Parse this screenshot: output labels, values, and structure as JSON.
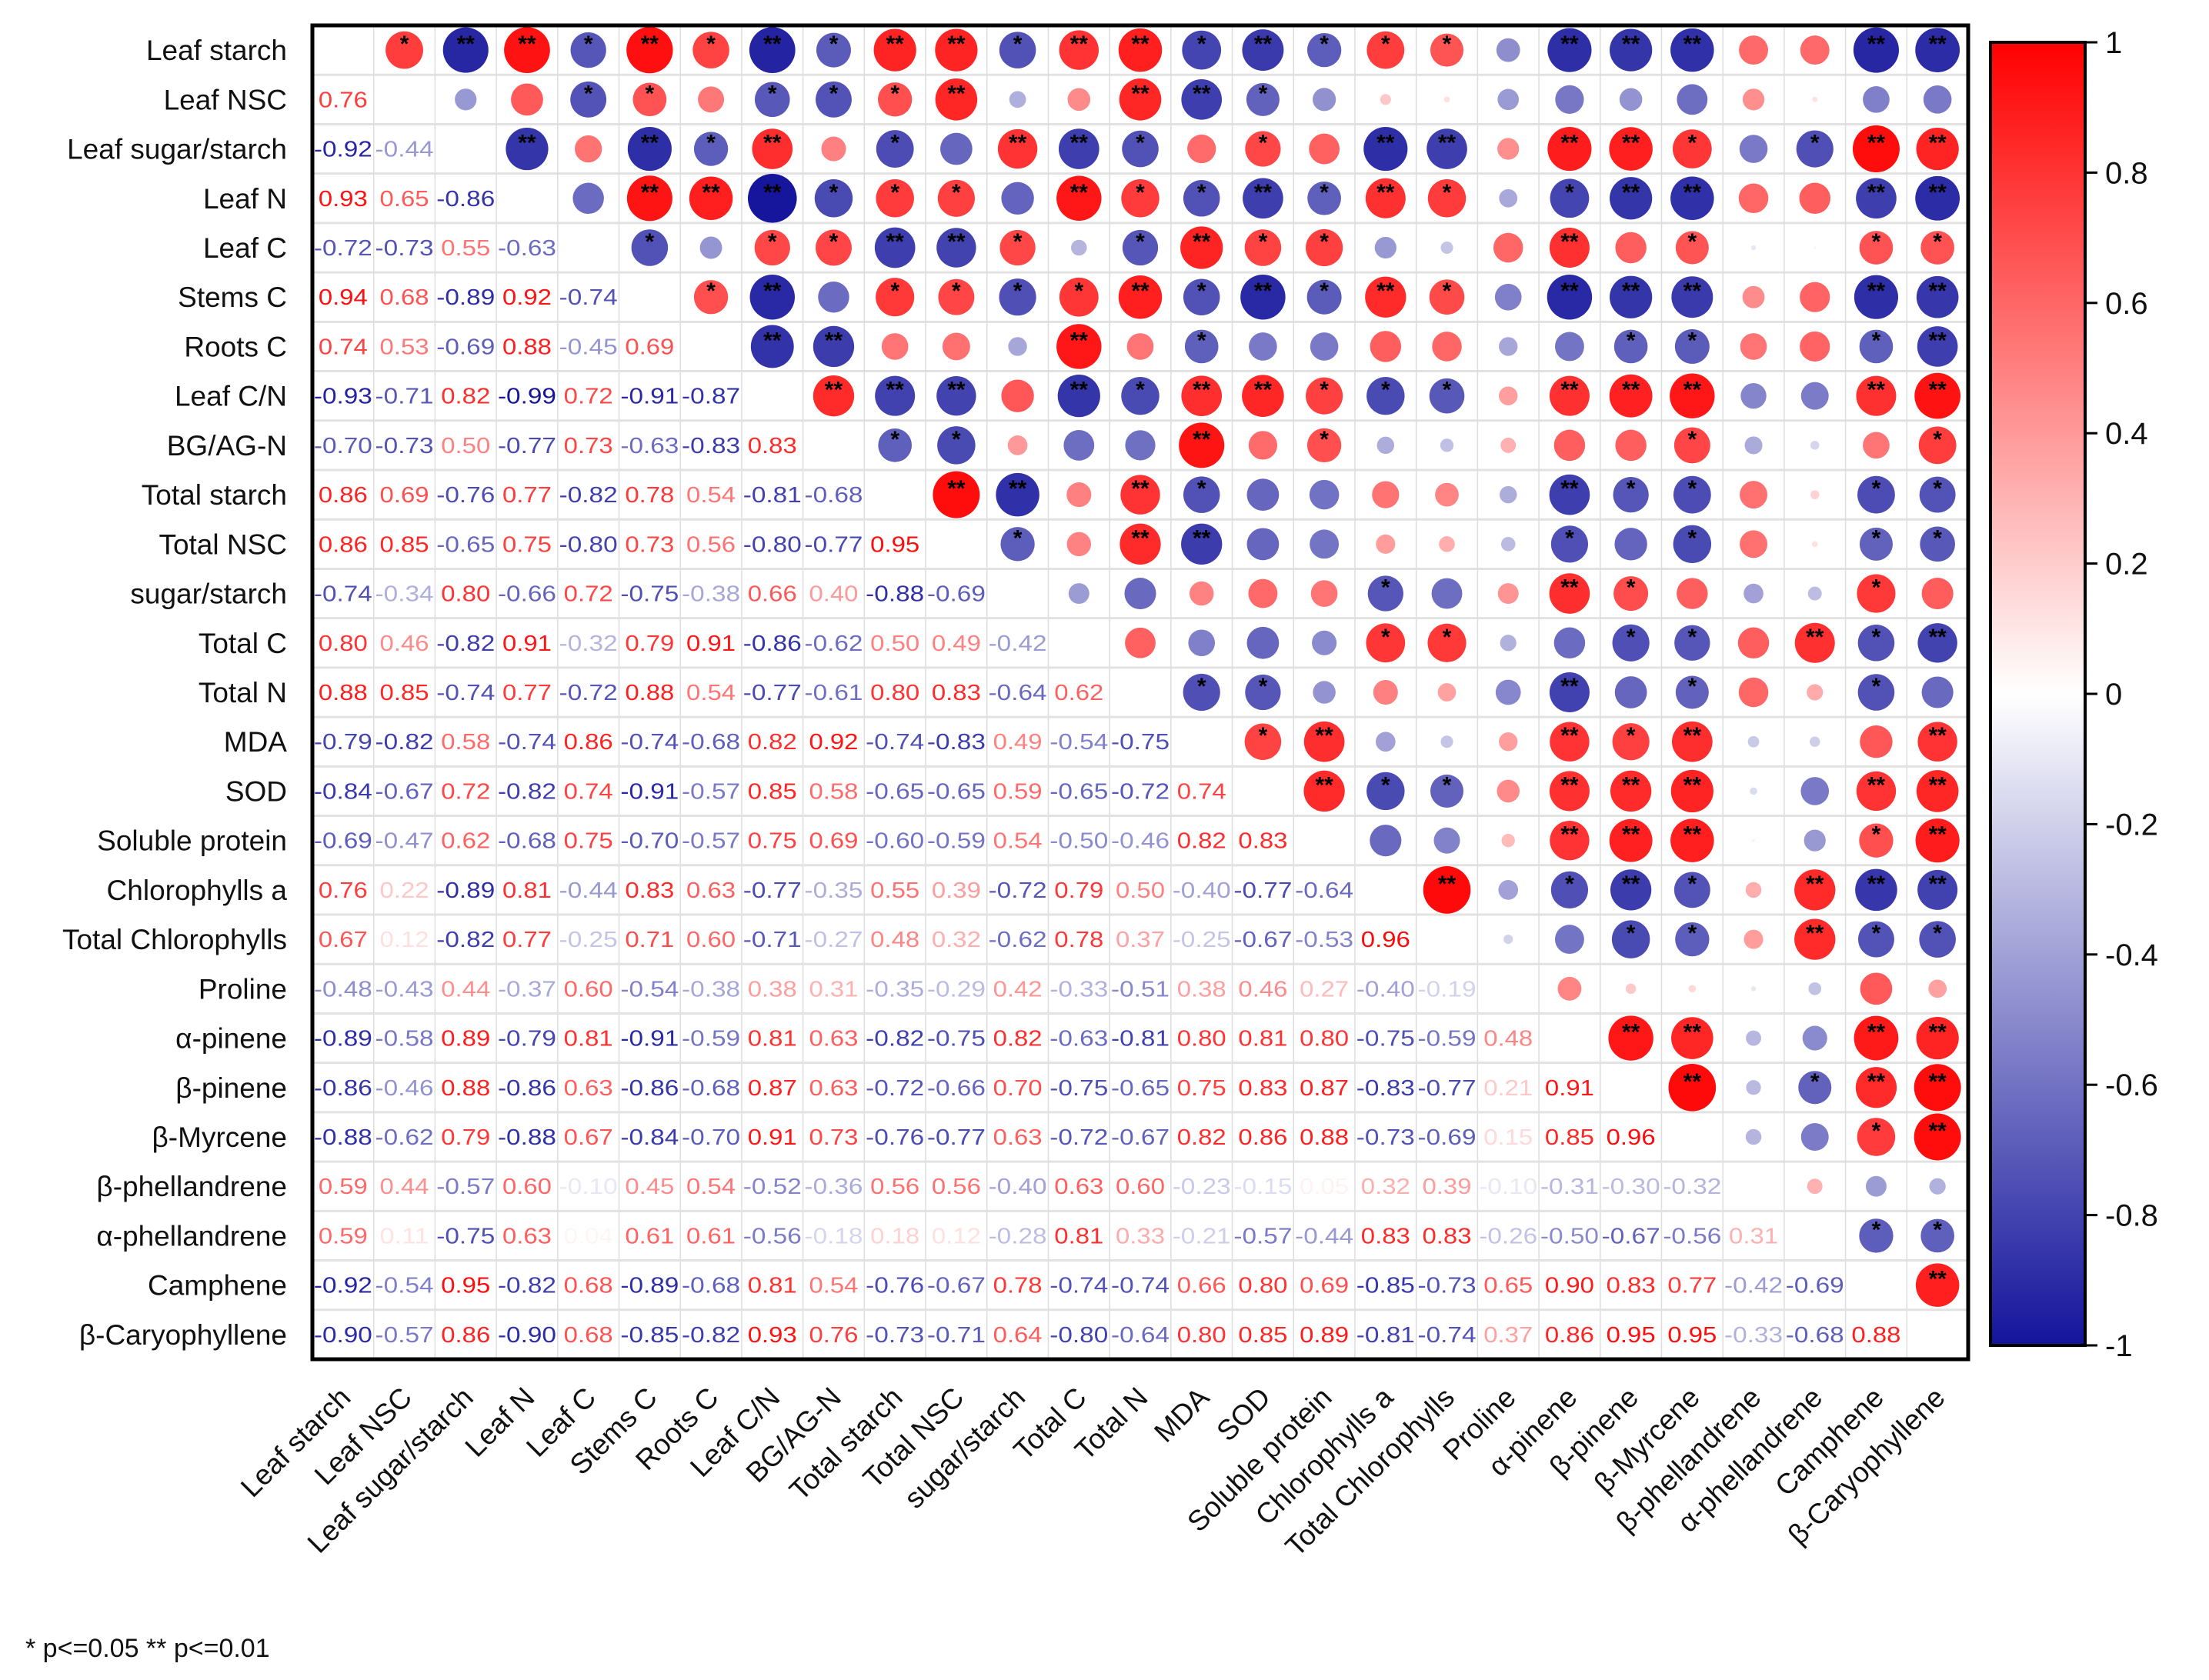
{
  "chart_data": {
    "type": "heatmap",
    "subtype": "correlation-matrix",
    "variables": [
      "Leaf starch",
      "Leaf NSC",
      "Leaf sugar/starch",
      "Leaf N",
      "Leaf C",
      "Stems C",
      "Roots C",
      "Leaf C/N",
      "BG/AG-N",
      "Total starch",
      "Total NSC",
      "sugar/starch",
      "Total C",
      "Total N",
      "MDA",
      "SOD",
      "Soluble protein",
      "Chlorophylls a",
      "Total Chlorophylls",
      "Proline",
      "α-pinene",
      "β-pinene",
      "β-Myrcene",
      "β-phellandrene",
      "α-phellandrene",
      "Camphene",
      "β-Caryophyllene"
    ],
    "lower_triangle": [
      [],
      [
        0.76
      ],
      [
        -0.92,
        -0.44
      ],
      [
        0.93,
        0.65,
        -0.86
      ],
      [
        -0.72,
        -0.73,
        0.55,
        -0.63
      ],
      [
        0.94,
        0.68,
        -0.89,
        0.92,
        -0.74
      ],
      [
        0.74,
        0.53,
        -0.69,
        0.88,
        -0.45,
        0.69
      ],
      [
        -0.93,
        -0.71,
        0.82,
        -0.99,
        0.72,
        -0.91,
        -0.87
      ],
      [
        -0.7,
        -0.73,
        0.5,
        -0.77,
        0.73,
        -0.63,
        -0.83,
        0.83
      ],
      [
        0.86,
        0.69,
        -0.76,
        0.77,
        -0.82,
        0.78,
        0.54,
        -0.81,
        -0.68
      ],
      [
        0.86,
        0.85,
        -0.65,
        0.75,
        -0.8,
        0.73,
        0.56,
        -0.8,
        -0.77,
        0.95
      ],
      [
        -0.74,
        -0.34,
        0.8,
        -0.66,
        0.72,
        -0.75,
        -0.38,
        0.66,
        0.4,
        -0.88,
        -0.69
      ],
      [
        0.8,
        0.46,
        -0.82,
        0.91,
        -0.32,
        0.79,
        0.91,
        -0.86,
        -0.62,
        0.5,
        0.49,
        -0.42
      ],
      [
        0.88,
        0.85,
        -0.74,
        0.77,
        -0.72,
        0.88,
        0.54,
        -0.77,
        -0.61,
        0.8,
        0.83,
        -0.64,
        0.62
      ],
      [
        -0.79,
        -0.82,
        0.58,
        -0.74,
        0.86,
        -0.74,
        -0.68,
        0.82,
        0.92,
        -0.74,
        -0.83,
        0.49,
        -0.54,
        -0.75
      ],
      [
        -0.84,
        -0.67,
        0.72,
        -0.82,
        0.74,
        -0.91,
        -0.57,
        0.85,
        0.58,
        -0.65,
        -0.65,
        0.59,
        -0.65,
        -0.72,
        0.74
      ],
      [
        -0.69,
        -0.47,
        0.62,
        -0.68,
        0.75,
        -0.7,
        -0.57,
        0.75,
        0.69,
        -0.6,
        -0.59,
        0.54,
        -0.5,
        -0.46,
        0.82,
        0.83
      ],
      [
        0.76,
        0.22,
        -0.89,
        0.81,
        -0.44,
        0.83,
        0.63,
        -0.77,
        -0.35,
        0.55,
        0.39,
        -0.72,
        0.79,
        0.5,
        -0.4,
        -0.77,
        -0.64
      ],
      [
        0.67,
        0.12,
        -0.82,
        0.77,
        -0.25,
        0.71,
        0.6,
        -0.71,
        -0.27,
        0.48,
        0.32,
        -0.62,
        0.78,
        0.37,
        -0.25,
        -0.67,
        -0.53,
        0.96
      ],
      [
        -0.48,
        -0.43,
        0.44,
        -0.37,
        0.6,
        -0.54,
        -0.38,
        0.38,
        0.31,
        -0.35,
        -0.29,
        0.42,
        -0.33,
        -0.51,
        0.38,
        0.46,
        0.27,
        -0.4,
        -0.19
      ],
      [
        -0.89,
        -0.58,
        0.89,
        -0.79,
        0.81,
        -0.91,
        -0.59,
        0.81,
        0.63,
        -0.82,
        -0.75,
        0.82,
        -0.63,
        -0.81,
        0.8,
        0.81,
        0.8,
        -0.75,
        -0.59,
        0.48
      ],
      [
        -0.86,
        -0.46,
        0.88,
        -0.86,
        0.63,
        -0.86,
        -0.68,
        0.87,
        0.63,
        -0.72,
        -0.66,
        0.7,
        -0.75,
        -0.65,
        0.75,
        0.83,
        0.87,
        -0.83,
        -0.77,
        0.21,
        0.91
      ],
      [
        -0.88,
        -0.62,
        0.79,
        -0.88,
        0.67,
        -0.84,
        -0.7,
        0.91,
        0.73,
        -0.76,
        -0.77,
        0.63,
        -0.72,
        -0.67,
        0.82,
        0.86,
        0.88,
        -0.73,
        -0.69,
        0.15,
        0.85,
        0.96
      ],
      [
        0.59,
        0.44,
        -0.57,
        0.6,
        -0.1,
        0.45,
        0.54,
        -0.52,
        -0.36,
        0.56,
        0.56,
        -0.4,
        0.63,
        0.6,
        -0.23,
        -0.15,
        0.05,
        0.32,
        0.39,
        -0.1,
        -0.31,
        -0.3,
        -0.32
      ],
      [
        0.59,
        0.11,
        -0.75,
        0.63,
        0.04,
        0.61,
        0.61,
        -0.56,
        -0.18,
        0.18,
        0.12,
        -0.28,
        0.81,
        0.33,
        -0.21,
        -0.57,
        -0.44,
        0.83,
        0.83,
        -0.26,
        -0.5,
        -0.67,
        -0.56,
        0.31
      ],
      [
        -0.92,
        -0.54,
        0.95,
        -0.82,
        0.68,
        -0.89,
        -0.68,
        0.81,
        0.54,
        -0.76,
        -0.67,
        0.78,
        -0.74,
        -0.74,
        0.66,
        0.8,
        0.69,
        -0.85,
        -0.73,
        0.65,
        0.9,
        0.83,
        0.77,
        -0.42,
        -0.69
      ],
      [
        -0.9,
        -0.57,
        0.86,
        -0.9,
        0.68,
        -0.85,
        -0.82,
        0.93,
        0.76,
        -0.73,
        -0.71,
        0.64,
        -0.8,
        -0.64,
        0.8,
        0.85,
        0.89,
        -0.81,
        -0.74,
        0.37,
        0.86,
        0.95,
        0.95,
        -0.33,
        -0.68,
        0.88
      ]
    ],
    "significance_abs_r": {
      "single_star": 0.665,
      "double_star": 0.795
    },
    "colorbar": {
      "range": [
        -1,
        1
      ],
      "ticks": [
        "1",
        "0.8",
        "0.6",
        "0.4",
        "0.2",
        "0",
        "-0.2",
        "-0.4",
        "-0.6",
        "-0.8",
        "-1"
      ]
    },
    "colors": {
      "positive": "#ff0000",
      "zero": "#ffffff",
      "negative": "#14149c"
    },
    "footnote": "* p<=0.05  ** p<=0.01"
  }
}
